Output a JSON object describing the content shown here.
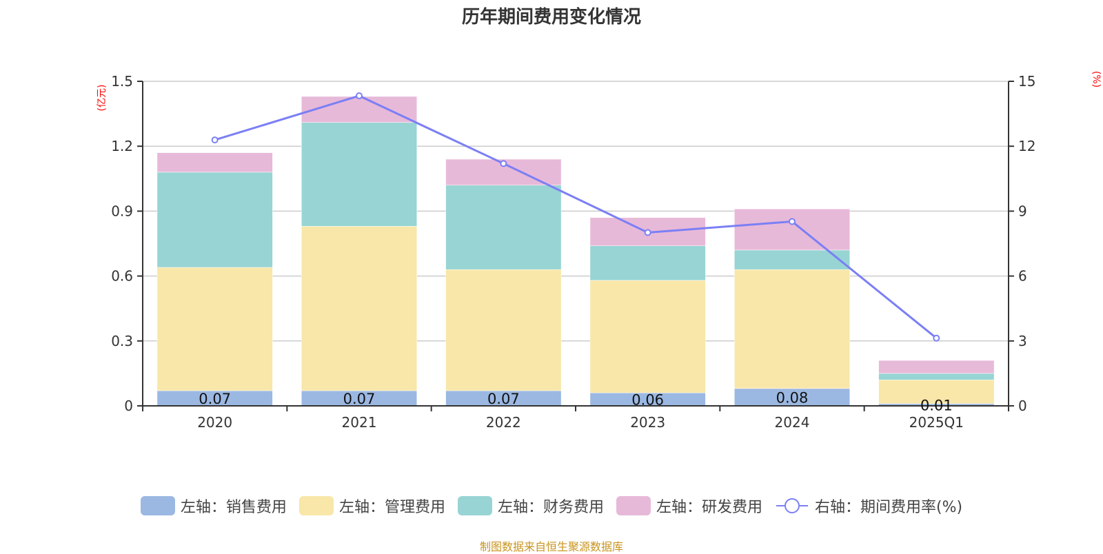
{
  "chart_data": {
    "type": "bar",
    "title": "历年期间费用变化情况",
    "categories": [
      "2020",
      "2021",
      "2022",
      "2023",
      "2024",
      "2025Q1"
    ],
    "left_axis": {
      "unit_label": "(亿元)",
      "ylim": [
        0,
        1.5
      ],
      "ticks": [
        "0",
        "0.3",
        "0.6",
        "0.9",
        "1.2",
        "1.5"
      ]
    },
    "right_axis": {
      "unit_label": "(%)",
      "ylim": [
        0,
        15
      ],
      "ticks": [
        "0",
        "3",
        "6",
        "9",
        "12",
        "15"
      ]
    },
    "grid": true,
    "legend_position": "bottom",
    "series": [
      {
        "name": "左轴：销售费用",
        "type": "bar",
        "stack": true,
        "axis": "left",
        "color": "#9bb8e2",
        "values": [
          0.07,
          0.07,
          0.07,
          0.06,
          0.08,
          0.01
        ],
        "labels": [
          "0.07",
          "0.07",
          "0.07",
          "0.06",
          "0.08",
          "0.01"
        ]
      },
      {
        "name": "左轴：管理费用",
        "type": "bar",
        "stack": true,
        "axis": "left",
        "color": "#f8e7a9",
        "values": [
          0.57,
          0.76,
          0.56,
          0.52,
          0.55,
          0.11
        ]
      },
      {
        "name": "左轴：财务费用",
        "type": "bar",
        "stack": true,
        "axis": "left",
        "color": "#98d4d4",
        "values": [
          0.44,
          0.48,
          0.39,
          0.16,
          0.09,
          0.03
        ]
      },
      {
        "name": "左轴：研发费用",
        "type": "bar",
        "stack": true,
        "axis": "left",
        "color": "#e7b9d8",
        "values": [
          0.09,
          0.12,
          0.12,
          0.13,
          0.19,
          0.06
        ]
      },
      {
        "name": "右轴：期间费用率(%)",
        "type": "line",
        "axis": "right",
        "color": "#7b7ff5",
        "values": [
          12.29,
          14.33,
          11.2,
          8.01,
          8.52,
          3.13
        ]
      }
    ]
  },
  "footer": "制图数据来自恒生聚源数据库"
}
